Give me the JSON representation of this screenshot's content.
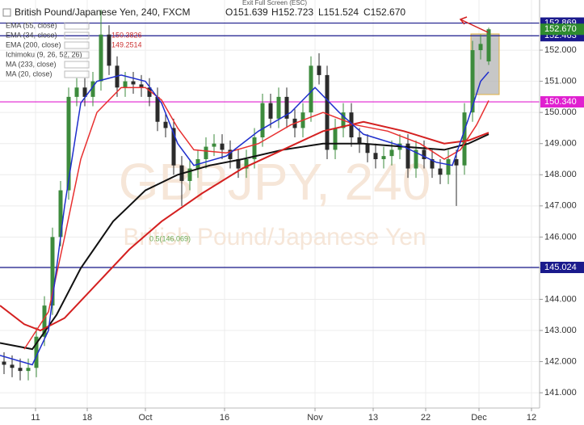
{
  "header": {
    "symbol": "British Pound/Japanese Yen, 240, FXCM",
    "ohlc": [
      "O151.639",
      "H152.723",
      "L151.524",
      "C152.670"
    ],
    "exit": "Exit Full Screen (ESC)"
  },
  "indicators": [
    {
      "name": "EMA (55, close)"
    },
    {
      "name": "EMA (34, close)",
      "value": "150.3826"
    },
    {
      "name": "EMA (200, close)",
      "value": "149.2514"
    },
    {
      "name": "Ichimoku (9, 26, 52, 26)"
    },
    {
      "name": "MA (233, close)"
    },
    {
      "name": "MA (20, close)"
    }
  ],
  "chart_data": {
    "type": "candlestick",
    "watermark": [
      "GBPJPY, 240",
      "British Pound/Japanese Yen"
    ],
    "annotation": "0.5(146.069)",
    "xlim": [
      0,
      66.8
    ],
    "ylim": [
      140.51,
      153.61
    ],
    "xticks": [
      {
        "value": 4.4,
        "label": "11"
      },
      {
        "value": 10.8,
        "label": "18"
      },
      {
        "value": 18,
        "label": "Oct"
      },
      {
        "value": 27.8,
        "label": "16"
      },
      {
        "value": 39,
        "label": "Nov"
      },
      {
        "value": 46.2,
        "label": "13"
      },
      {
        "value": 52.7,
        "label": "22"
      },
      {
        "value": 59.3,
        "label": "Dec"
      },
      {
        "value": 65.8,
        "label": "12"
      }
    ],
    "yticks": [
      {
        "value": 141,
        "label": "141.000"
      },
      {
        "value": 142,
        "label": "142.000"
      },
      {
        "value": 143,
        "label": "143.000"
      },
      {
        "value": 144,
        "label": "144.000"
      },
      {
        "value": 145,
        "label": "145.000"
      },
      {
        "value": 146,
        "label": "146.000"
      },
      {
        "value": 147,
        "label": "147.000"
      },
      {
        "value": 148,
        "label": "148.000"
      },
      {
        "value": 149,
        "label": "149.000"
      },
      {
        "value": 150,
        "label": "150.000"
      },
      {
        "value": 151,
        "label": "151.000"
      },
      {
        "value": 152,
        "label": "152.000"
      }
    ],
    "grid": true,
    "up_color": "#3d8b3d",
    "down_color": "#2b2b2b",
    "x": [
      0.5,
      1.5,
      2.5,
      3.5,
      4.5,
      5.5,
      6.5,
      7.5,
      8.5,
      9.5,
      10.5,
      11.5,
      12.5,
      13.5,
      14.5,
      15.5,
      16.5,
      17.5,
      18.5,
      19.5,
      20.5,
      21.5,
      22.5,
      23.5,
      24.5,
      25.5,
      26.5,
      27.5,
      28.5,
      29.5,
      30.5,
      31.5,
      32.5,
      33.5,
      34.5,
      35.5,
      36.5,
      37.5,
      38.5,
      39.5,
      40.5,
      41.5,
      42.5,
      43.5,
      44.5,
      45.5,
      46.5,
      47.5,
      48.5,
      49.5,
      50.5,
      51.5,
      52.5,
      53.5,
      54.5,
      55.5,
      56.5,
      57.5,
      58.5,
      59.5,
      60.5
    ],
    "open": [
      142.0,
      141.9,
      141.8,
      141.7,
      141.8,
      142.8,
      143.8,
      146.0,
      147.5,
      150.5,
      150.8,
      150.5,
      151.0,
      152.5,
      151.5,
      150.8,
      151.0,
      150.9,
      150.8,
      150.5,
      149.7,
      149.5,
      148.3,
      147.8,
      148.2,
      148.5,
      148.9,
      149.0,
      148.8,
      148.5,
      148.2,
      148.5,
      149.2,
      150.3,
      149.8,
      150.5,
      149.8,
      149.5,
      150.0,
      151.5,
      151.2,
      148.8,
      149.5,
      150.0,
      149.2,
      149.0,
      148.7,
      148.5,
      148.6,
      148.8,
      149.0,
      148.2,
      148.8,
      148.5,
      148.2,
      148.0,
      148.5,
      148.3,
      150.0,
      152.0,
      151.639
    ],
    "high": [
      142.3,
      142.2,
      142.1,
      142.1,
      143.1,
      144.1,
      146.3,
      147.8,
      150.8,
      151.1,
      151.1,
      151.3,
      153.3,
      152.8,
      151.8,
      151.3,
      151.3,
      151.2,
      151.1,
      150.8,
      150.0,
      149.8,
      148.6,
      148.5,
      148.8,
      149.2,
      149.3,
      149.3,
      149.1,
      148.8,
      148.8,
      149.5,
      150.6,
      150.6,
      150.8,
      150.8,
      150.1,
      150.3,
      151.8,
      151.9,
      151.5,
      149.8,
      150.3,
      150.3,
      149.5,
      149.3,
      149.0,
      148.9,
      149.1,
      149.3,
      149.3,
      149.1,
      149.1,
      148.8,
      148.5,
      148.8,
      148.8,
      150.3,
      152.3,
      152.5,
      152.723
    ],
    "low": [
      141.6,
      141.5,
      141.4,
      141.4,
      141.5,
      142.5,
      143.5,
      145.7,
      147.2,
      150.2,
      150.2,
      150.2,
      150.7,
      151.2,
      150.5,
      150.5,
      150.6,
      150.5,
      150.2,
      149.4,
      149.2,
      148.0,
      147.0,
      147.5,
      147.9,
      148.2,
      148.6,
      148.5,
      148.2,
      147.9,
      147.9,
      148.2,
      148.9,
      149.5,
      149.5,
      149.5,
      149.2,
      149.2,
      149.7,
      150.9,
      148.5,
      148.5,
      149.2,
      148.9,
      148.7,
      148.4,
      148.2,
      148.2,
      148.3,
      148.5,
      147.9,
      147.9,
      148.2,
      147.9,
      147.7,
      147.7,
      147.0,
      148.0,
      149.7,
      151.7,
      151.524
    ],
    "close": [
      141.9,
      141.8,
      141.7,
      141.8,
      142.8,
      143.8,
      146.0,
      147.5,
      150.5,
      150.8,
      150.5,
      151.0,
      152.5,
      151.5,
      150.8,
      151.0,
      150.9,
      150.8,
      150.5,
      149.7,
      149.5,
      148.3,
      147.8,
      148.2,
      148.5,
      148.9,
      149.0,
      148.8,
      148.5,
      148.2,
      148.5,
      149.2,
      150.3,
      149.8,
      150.5,
      149.8,
      149.5,
      150.0,
      151.5,
      151.2,
      148.8,
      149.5,
      150.0,
      149.2,
      149.0,
      148.7,
      148.5,
      148.6,
      148.8,
      149.0,
      148.2,
      148.8,
      148.5,
      148.2,
      148.0,
      148.5,
      148.3,
      150.0,
      152.0,
      152.2,
      152.67
    ],
    "last_price_label": "152.670",
    "lines": [
      {
        "color": "#111111",
        "width": 2,
        "x": [
          0,
          4,
          7,
          10,
          14,
          18,
          22,
          26,
          30,
          35,
          40,
          45,
          50,
          55,
          58,
          60.5
        ],
        "values": [
          142.6,
          142.4,
          143.5,
          145.0,
          146.5,
          147.5,
          148.0,
          148.3,
          148.5,
          148.8,
          149.0,
          149.0,
          148.9,
          148.8,
          149.0,
          149.3
        ]
      },
      {
        "color": "#d42020",
        "width": 2,
        "x": [
          0,
          3,
          5,
          8,
          12,
          16,
          20,
          25,
          30,
          35,
          40,
          45,
          50,
          55,
          58,
          60.5
        ],
        "values": [
          143.8,
          143.2,
          143.0,
          143.4,
          144.5,
          145.6,
          146.5,
          147.4,
          148.2,
          148.8,
          149.4,
          149.7,
          149.4,
          149.0,
          149.1,
          149.35
        ]
      },
      {
        "color": "#e83030",
        "width": 1.5,
        "x": [
          3,
          6,
          8,
          10,
          12,
          15,
          18,
          20,
          22,
          24,
          28,
          32,
          36,
          40,
          44,
          48,
          52,
          55,
          57,
          59,
          60.5
        ],
        "values": [
          142.4,
          143.6,
          146.0,
          148.5,
          150.0,
          150.8,
          150.8,
          150.4,
          149.5,
          148.8,
          148.7,
          149.0,
          149.6,
          150.0,
          149.6,
          149.4,
          149.0,
          148.5,
          148.8,
          149.6,
          150.38
        ]
      },
      {
        "color": "#1f2fcc",
        "width": 1.5,
        "x": [
          0,
          4,
          6,
          8,
          10,
          12,
          15,
          18,
          20,
          22,
          24,
          28,
          32,
          36,
          39,
          42,
          45,
          50,
          54,
          56,
          58,
          59.5,
          60.5
        ],
        "values": [
          142.2,
          141.9,
          143.0,
          147.0,
          150.3,
          151.0,
          151.2,
          151.0,
          150.3,
          149.0,
          148.3,
          148.6,
          149.4,
          150.0,
          150.8,
          150.0,
          149.3,
          148.9,
          148.4,
          148.3,
          149.8,
          151.0,
          151.3
        ]
      }
    ],
    "levels": [
      {
        "value": 152.869,
        "label": "152.869",
        "color": "#1a1a8c"
      },
      {
        "value": 152.463,
        "label": "152.463",
        "color": "#1a1a8c"
      },
      {
        "value": 150.34,
        "label": "150.340",
        "color": "#e020d0"
      },
      {
        "value": 145.024,
        "label": "145.024",
        "color": "#1a1a8c"
      }
    ]
  }
}
